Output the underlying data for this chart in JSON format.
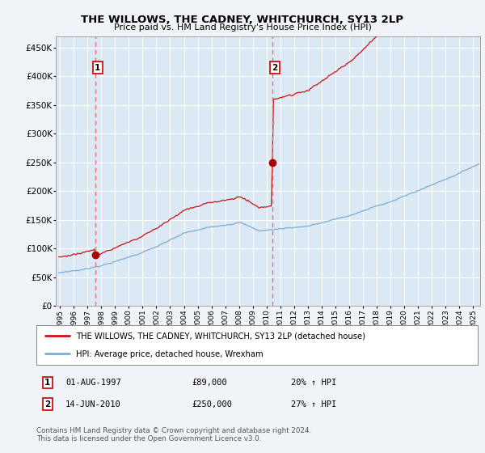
{
  "title": "THE WILLOWS, THE CADNEY, WHITCHURCH, SY13 2LP",
  "subtitle": "Price paid vs. HM Land Registry's House Price Index (HPI)",
  "legend_line1": "THE WILLOWS, THE CADNEY, WHITCHURCH, SY13 2LP (detached house)",
  "legend_line2": "HPI: Average price, detached house, Wrexham",
  "footer": "Contains HM Land Registry data © Crown copyright and database right 2024.\nThis data is licensed under the Open Government Licence v3.0.",
  "sale1_date": 1997.58,
  "sale1_price": 89000,
  "sale2_date": 2010.45,
  "sale2_price": 250000,
  "hpi_color": "#7aadd4",
  "price_color": "#cc1111",
  "vline_color": "#e87070",
  "dot_color": "#aa0000",
  "bg_color": "#f0f4f8",
  "plot_bg": "#dce8f4",
  "grid_color": "#ffffff",
  "ylim": [
    0,
    470000
  ],
  "yticks": [
    0,
    50000,
    100000,
    150000,
    200000,
    250000,
    300000,
    350000,
    400000,
    450000
  ],
  "xlim_start": 1994.7,
  "xlim_end": 2025.5,
  "xticks": [
    1995,
    1996,
    1997,
    1998,
    1999,
    2000,
    2001,
    2002,
    2003,
    2004,
    2005,
    2006,
    2007,
    2008,
    2009,
    2010,
    2011,
    2012,
    2013,
    2014,
    2015,
    2016,
    2017,
    2018,
    2019,
    2020,
    2021,
    2022,
    2023,
    2024,
    2025
  ]
}
